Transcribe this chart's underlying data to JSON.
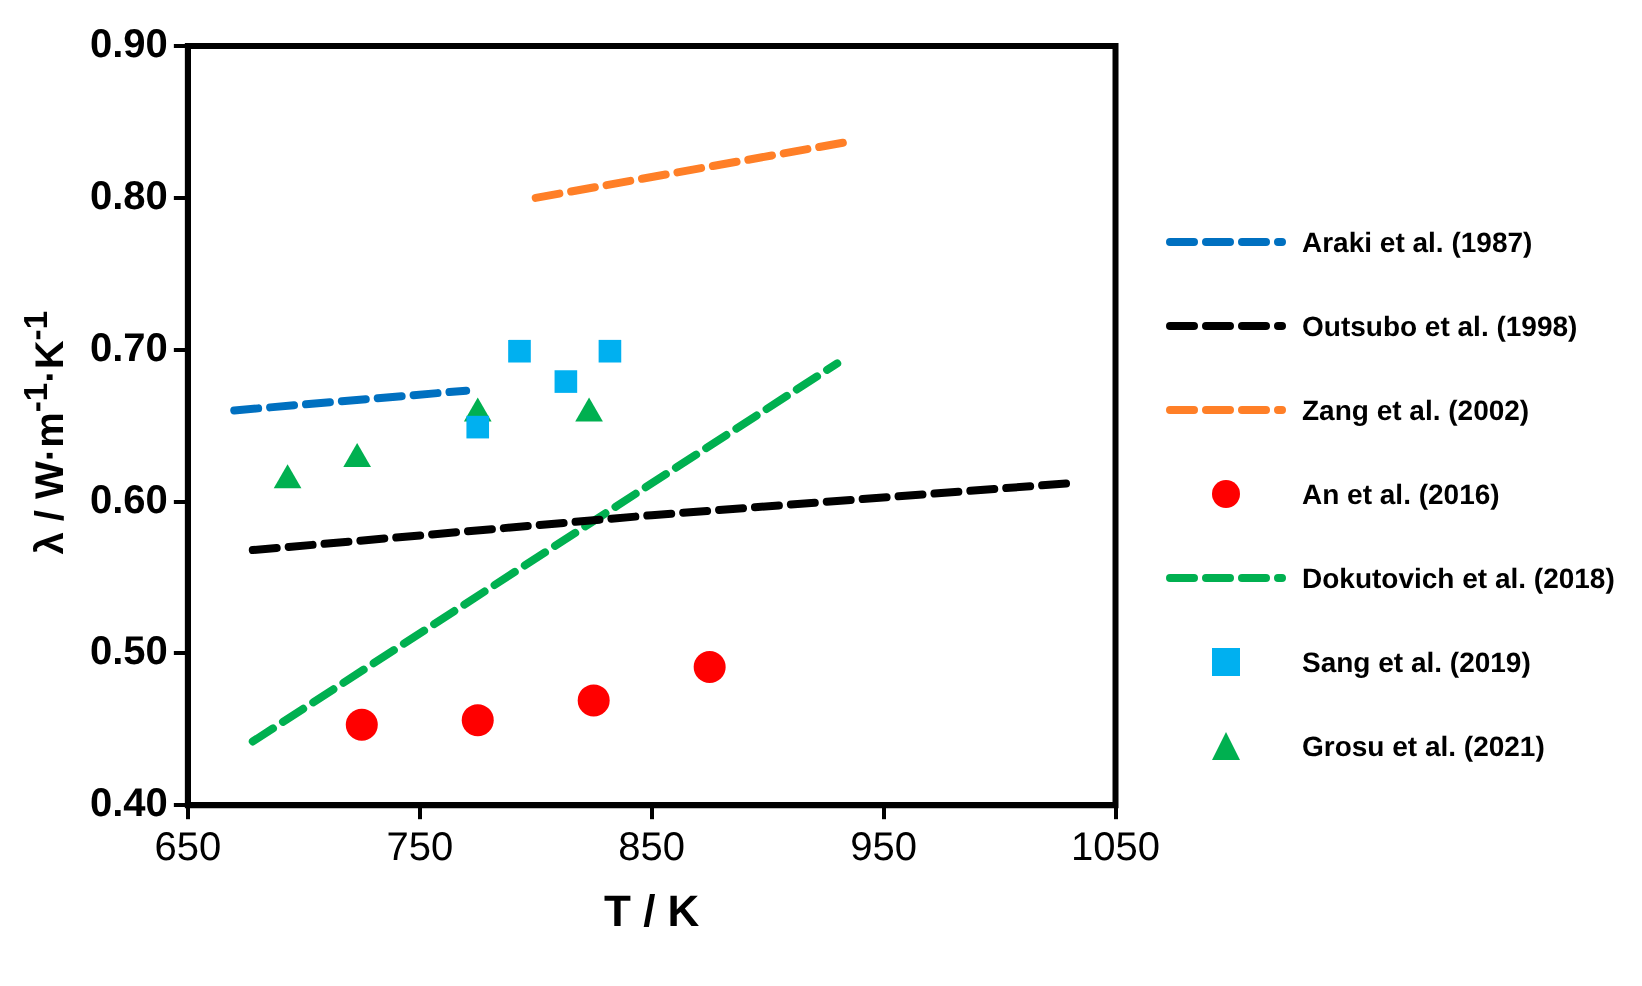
{
  "chart_data": {
    "type": "line",
    "xlabel": "T / K",
    "ylabel": "λ / W·m$^{-1}$·K$^{-1}$",
    "xlim": [
      650,
      1050
    ],
    "xticks": [
      650,
      750,
      850,
      950,
      1050
    ],
    "ylim": [
      0.4,
      0.9
    ],
    "yticks": [
      {
        "value": 0.4,
        "label": "0.40"
      },
      {
        "value": 0.5,
        "label": "0.50"
      },
      {
        "value": 0.6,
        "label": "0.60"
      },
      {
        "value": 0.7,
        "label": "0.70"
      },
      {
        "value": 0.8,
        "label": "0.80"
      },
      {
        "value": 0.9,
        "label": "0.90"
      }
    ],
    "grid": false,
    "legend": "right",
    "series": [
      {
        "name": "Araki et al. (1987)",
        "line_style": "dashed",
        "marker": "none",
        "color": "#0070c0",
        "x": [
          670,
          770
        ],
        "values": [
          0.66,
          0.673
        ]
      },
      {
        "name": "Outsubo et al. (1998)",
        "line_style": "dashed",
        "marker": "none",
        "color": "#000000",
        "x": [
          678,
          850,
          1030
        ],
        "values": [
          0.568,
          0.591,
          0.612
        ]
      },
      {
        "name": "Zang et al. (2002)",
        "line_style": "dashed",
        "marker": "none",
        "color": "#ff7f27",
        "x": [
          800,
          935
        ],
        "values": [
          0.8,
          0.837
        ]
      },
      {
        "name": "An et al. (2016)",
        "type": "scatter",
        "marker": "circle",
        "color": "#ff0000",
        "x": [
          725,
          775,
          825,
          875
        ],
        "values": [
          0.453,
          0.456,
          0.469,
          0.491
        ]
      },
      {
        "name": "Dokutovich et al. (2018)",
        "line_style": "dashed",
        "marker": "none",
        "color": "#00b050",
        "x": [
          678,
          930
        ],
        "values": [
          0.442,
          0.691
        ]
      },
      {
        "name": "Sang et al. (2019)",
        "type": "scatter",
        "marker": "square",
        "color": "#00b0f0",
        "x": [
          775,
          793,
          813,
          832
        ],
        "values": [
          0.649,
          0.699,
          0.679,
          0.699
        ]
      },
      {
        "name": "Grosu et al. (2021)",
        "type": "scatter",
        "marker": "triangle",
        "color": "#00b050",
        "x": [
          693,
          723,
          775,
          823
        ],
        "values": [
          0.614,
          0.628,
          0.658,
          0.658
        ]
      }
    ]
  }
}
